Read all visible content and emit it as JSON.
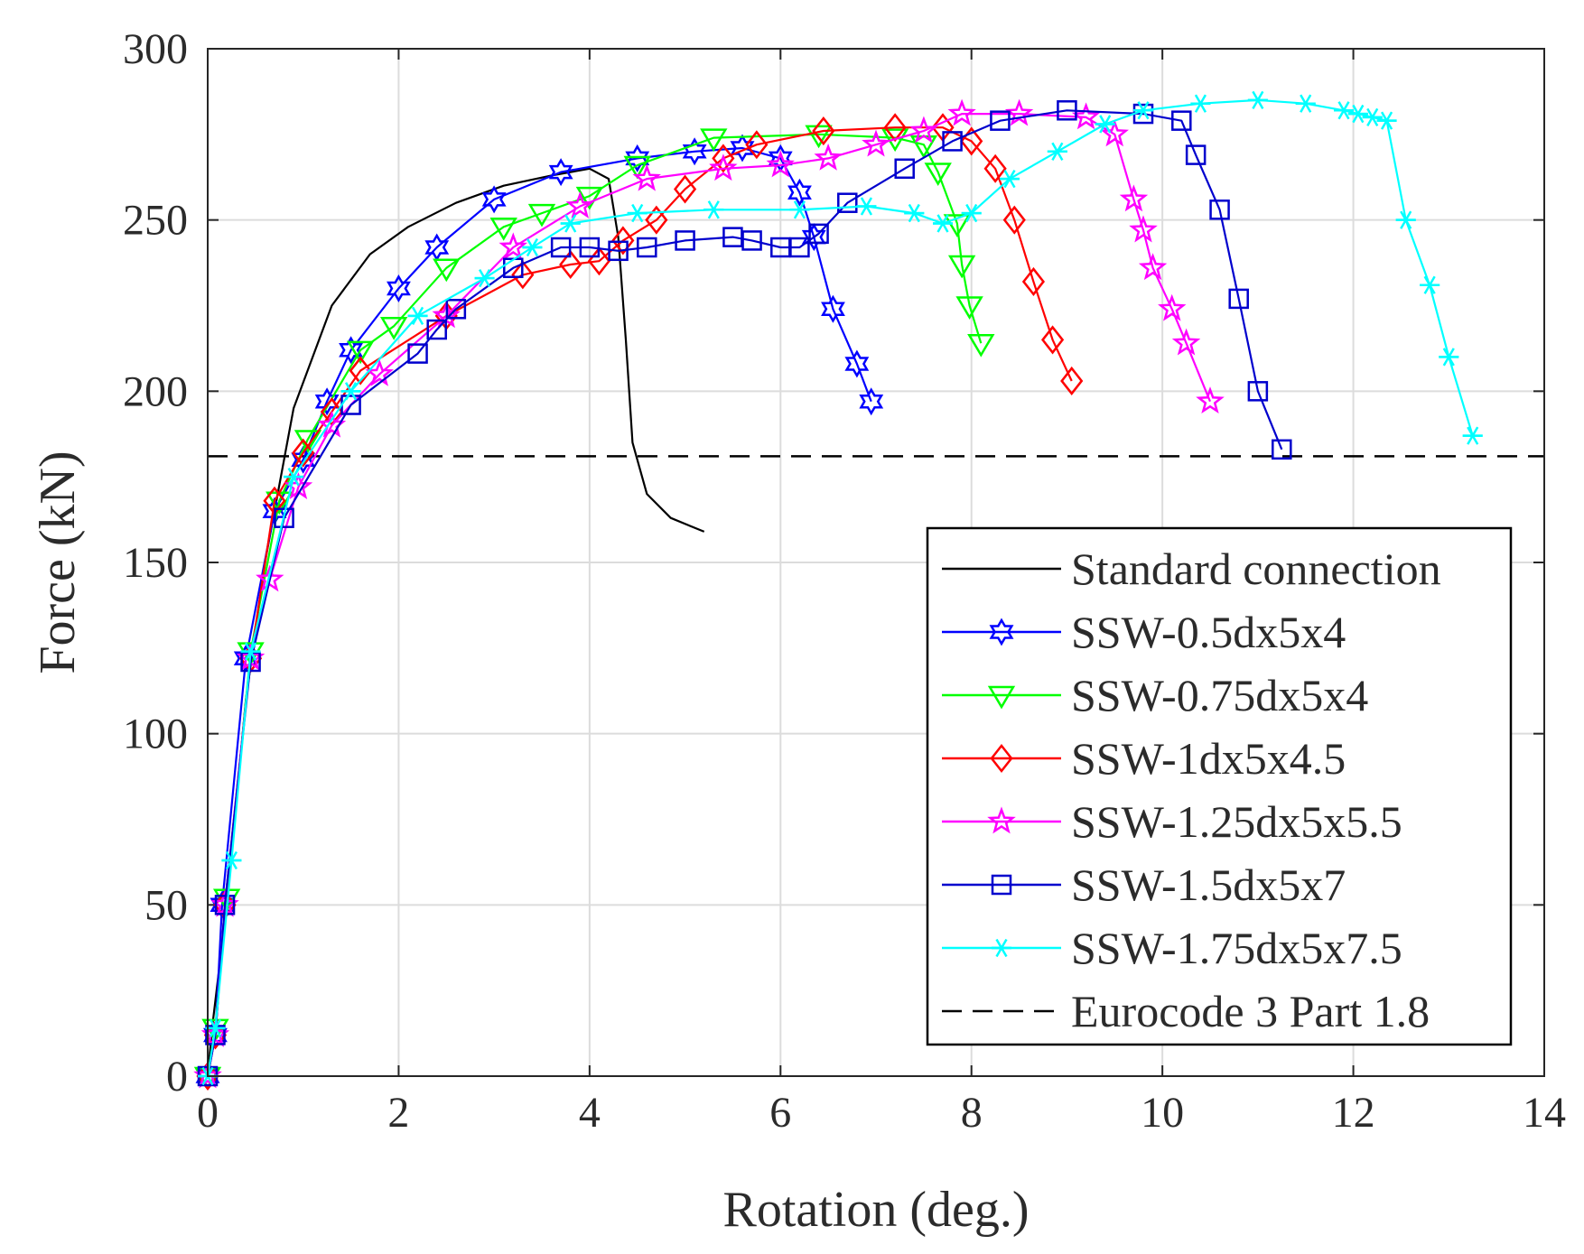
{
  "chart_data": {
    "type": "line",
    "title": "",
    "xlabel": "Rotation (deg.)",
    "ylabel": "Force (kN)",
    "xlim": [
      0,
      14
    ],
    "ylim": [
      0,
      300
    ],
    "xticks": [
      0,
      2,
      4,
      6,
      8,
      10,
      12,
      14
    ],
    "yticks": [
      0,
      50,
      100,
      150,
      200,
      250,
      300
    ],
    "grid": true,
    "legend_position": "bottom-right",
    "reference_line": {
      "name": "Eurocode 3 Part 1.8",
      "y": 181,
      "color": "#000000",
      "style": "dashed"
    },
    "series": [
      {
        "name": "Standard connection",
        "color": "#000000",
        "marker": "none",
        "points": [
          [
            0,
            0
          ],
          [
            0.05,
            15
          ],
          [
            0.2,
            50
          ],
          [
            0.4,
            110
          ],
          [
            0.6,
            150
          ],
          [
            0.9,
            195
          ],
          [
            1.3,
            225
          ],
          [
            1.7,
            240
          ],
          [
            2.1,
            248
          ],
          [
            2.6,
            255
          ],
          [
            3.1,
            260
          ],
          [
            3.6,
            263
          ],
          [
            4.0,
            265
          ],
          [
            4.2,
            262
          ],
          [
            4.3,
            245
          ],
          [
            4.38,
            215
          ],
          [
            4.45,
            185
          ],
          [
            4.6,
            170
          ],
          [
            4.85,
            163
          ],
          [
            5.2,
            159
          ]
        ]
      },
      {
        "name": "SSW-0.5dx5x4",
        "color": "#0000ff",
        "marker": "hexagram",
        "points": [
          [
            0,
            0
          ],
          [
            0.08,
            12
          ],
          [
            0.15,
            50
          ],
          [
            0.4,
            122
          ],
          [
            0.7,
            165
          ],
          [
            1.0,
            180
          ],
          [
            1.25,
            197
          ],
          [
            1.5,
            212
          ],
          [
            2.0,
            230
          ],
          [
            2.4,
            242
          ],
          [
            3.0,
            256
          ],
          [
            3.7,
            264
          ],
          [
            4.5,
            268
          ],
          [
            5.1,
            270
          ],
          [
            5.6,
            271
          ],
          [
            6.0,
            268
          ],
          [
            6.2,
            258
          ],
          [
            6.35,
            245
          ],
          [
            6.55,
            224
          ],
          [
            6.8,
            208
          ],
          [
            6.95,
            197
          ]
        ]
      },
      {
        "name": "SSW-0.75dx5x4",
        "color": "#00ff00",
        "marker": "triangle-down",
        "points": [
          [
            0,
            0
          ],
          [
            0.08,
            14
          ],
          [
            0.2,
            52
          ],
          [
            0.45,
            124
          ],
          [
            0.75,
            168
          ],
          [
            1.05,
            186
          ],
          [
            1.6,
            212
          ],
          [
            1.95,
            219
          ],
          [
            2.5,
            236
          ],
          [
            3.1,
            248
          ],
          [
            3.5,
            252
          ],
          [
            4.0,
            257
          ],
          [
            4.5,
            266
          ],
          [
            5.3,
            274
          ],
          [
            6.4,
            275
          ],
          [
            7.2,
            274
          ],
          [
            7.5,
            272
          ],
          [
            7.65,
            264
          ],
          [
            7.85,
            249
          ],
          [
            7.9,
            237
          ],
          [
            7.98,
            225
          ],
          [
            8.1,
            214
          ]
        ]
      },
      {
        "name": "SSW-1dx5x4.5",
        "color": "#ff0000",
        "marker": "diamond",
        "points": [
          [
            0,
            0
          ],
          [
            0.08,
            12
          ],
          [
            0.18,
            50
          ],
          [
            0.45,
            122
          ],
          [
            0.7,
            168
          ],
          [
            1.0,
            182
          ],
          [
            1.3,
            194
          ],
          [
            1.6,
            206
          ],
          [
            2.5,
            222
          ],
          [
            3.3,
            234
          ],
          [
            3.8,
            237
          ],
          [
            4.1,
            238
          ],
          [
            4.35,
            244
          ],
          [
            4.7,
            250
          ],
          [
            5.0,
            259
          ],
          [
            5.4,
            268
          ],
          [
            5.75,
            272
          ],
          [
            6.45,
            276
          ],
          [
            7.2,
            277
          ],
          [
            7.7,
            277
          ],
          [
            8.0,
            273
          ],
          [
            8.25,
            265
          ],
          [
            8.45,
            250
          ],
          [
            8.65,
            232
          ],
          [
            8.85,
            215
          ],
          [
            9.05,
            203
          ]
        ]
      },
      {
        "name": "SSW-1.25dx5x5.5",
        "color": "#ff00ff",
        "marker": "pentagram",
        "points": [
          [
            0,
            0
          ],
          [
            0.08,
            12
          ],
          [
            0.18,
            50
          ],
          [
            0.45,
            122
          ],
          [
            0.65,
            145
          ],
          [
            0.95,
            172
          ],
          [
            1.3,
            190
          ],
          [
            1.8,
            205
          ],
          [
            2.5,
            222
          ],
          [
            3.2,
            242
          ],
          [
            3.9,
            254
          ],
          [
            4.6,
            262
          ],
          [
            5.4,
            265
          ],
          [
            6.0,
            266
          ],
          [
            6.5,
            268
          ],
          [
            7.0,
            272
          ],
          [
            7.5,
            276
          ],
          [
            7.9,
            281
          ],
          [
            8.5,
            281
          ],
          [
            9.2,
            280
          ],
          [
            9.5,
            275
          ],
          [
            9.7,
            256
          ],
          [
            9.8,
            247
          ],
          [
            9.9,
            236
          ],
          [
            10.1,
            224
          ],
          [
            10.25,
            214
          ],
          [
            10.5,
            197
          ]
        ]
      },
      {
        "name": "SSW-1.5dx5x7",
        "color": "#0000cd",
        "marker": "square",
        "points": [
          [
            0,
            0
          ],
          [
            0.08,
            12
          ],
          [
            0.18,
            50
          ],
          [
            0.45,
            121
          ],
          [
            0.8,
            163
          ],
          [
            1.5,
            196
          ],
          [
            2.2,
            211
          ],
          [
            2.4,
            218
          ],
          [
            2.6,
            224
          ],
          [
            3.2,
            236
          ],
          [
            3.7,
            242
          ],
          [
            4.0,
            242
          ],
          [
            4.3,
            241
          ],
          [
            4.6,
            242
          ],
          [
            5.0,
            244
          ],
          [
            5.5,
            245
          ],
          [
            5.7,
            244
          ],
          [
            6.0,
            242
          ],
          [
            6.2,
            242
          ],
          [
            6.4,
            246
          ],
          [
            6.7,
            255
          ],
          [
            7.3,
            265
          ],
          [
            7.8,
            273
          ],
          [
            8.3,
            279
          ],
          [
            9.0,
            282
          ],
          [
            9.8,
            281
          ],
          [
            10.2,
            279
          ],
          [
            10.35,
            269
          ],
          [
            10.6,
            253
          ],
          [
            10.8,
            227
          ],
          [
            11.0,
            200
          ],
          [
            11.25,
            183
          ]
        ]
      },
      {
        "name": "SSW-1.75dx5x7.5",
        "color": "#00ffff",
        "marker": "asterisk",
        "points": [
          [
            0,
            0
          ],
          [
            0.08,
            14
          ],
          [
            0.25,
            63
          ],
          [
            0.45,
            124
          ],
          [
            0.9,
            175
          ],
          [
            1.5,
            200
          ],
          [
            2.2,
            222
          ],
          [
            2.9,
            233
          ],
          [
            3.4,
            242
          ],
          [
            3.8,
            249
          ],
          [
            4.5,
            252
          ],
          [
            5.3,
            253
          ],
          [
            6.2,
            253
          ],
          [
            6.9,
            254
          ],
          [
            7.4,
            252
          ],
          [
            7.7,
            249
          ],
          [
            8.0,
            252
          ],
          [
            8.4,
            262
          ],
          [
            8.9,
            270
          ],
          [
            9.4,
            278
          ],
          [
            9.8,
            282
          ],
          [
            10.4,
            284
          ],
          [
            11.0,
            285
          ],
          [
            11.5,
            284
          ],
          [
            11.9,
            282
          ],
          [
            12.05,
            281
          ],
          [
            12.2,
            280
          ],
          [
            12.35,
            279
          ],
          [
            12.55,
            250
          ],
          [
            12.8,
            231
          ],
          [
            13.0,
            210
          ],
          [
            13.25,
            187
          ]
        ]
      }
    ]
  }
}
